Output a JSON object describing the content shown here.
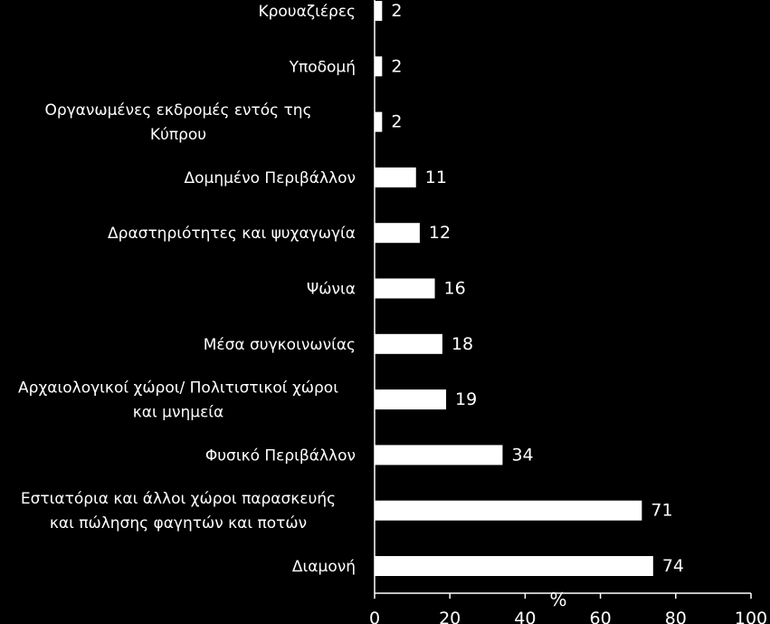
{
  "chart_data": {
    "type": "bar",
    "orientation": "horizontal",
    "categories": [
      [
        "Κρουαζιέρες"
      ],
      [
        "Υποδομή"
      ],
      [
        "Οργανωμένες εκδρομές εντός της",
        "Κύπρου"
      ],
      [
        "Δομημένο Περιβάλλον"
      ],
      [
        "Δραστηριότητες και ψυχαγωγία"
      ],
      [
        "Ψώνια"
      ],
      [
        "Μέσα συγκοινωνίας"
      ],
      [
        "Αρχαιολογικοί χώροι/ Πολιτιστικοί χώροι",
        "και μνημεία"
      ],
      [
        "Φυσικό Περιβάλλον"
      ],
      [
        "Εστιατόρια και άλλοι χώροι παρασκευής",
        "και πώλησης φαγητών και ποτών"
      ],
      [
        "Διαμονή"
      ]
    ],
    "values": [
      2,
      2,
      2,
      11,
      12,
      16,
      18,
      19,
      34,
      71,
      74
    ],
    "data_labels": [
      "2",
      "2",
      "2",
      "11",
      "12",
      "16",
      "18",
      "19",
      "34",
      "71",
      "74"
    ],
    "xlim": [
      0,
      100
    ],
    "xticks": [
      "0",
      "20",
      "40",
      "60",
      "80",
      "100"
    ],
    "xlabel": "%",
    "title": "",
    "grid": false,
    "colors": {
      "background": "#000000",
      "bar": "#ffffff",
      "text": "#ffffff",
      "axis": "#ffffff"
    }
  }
}
